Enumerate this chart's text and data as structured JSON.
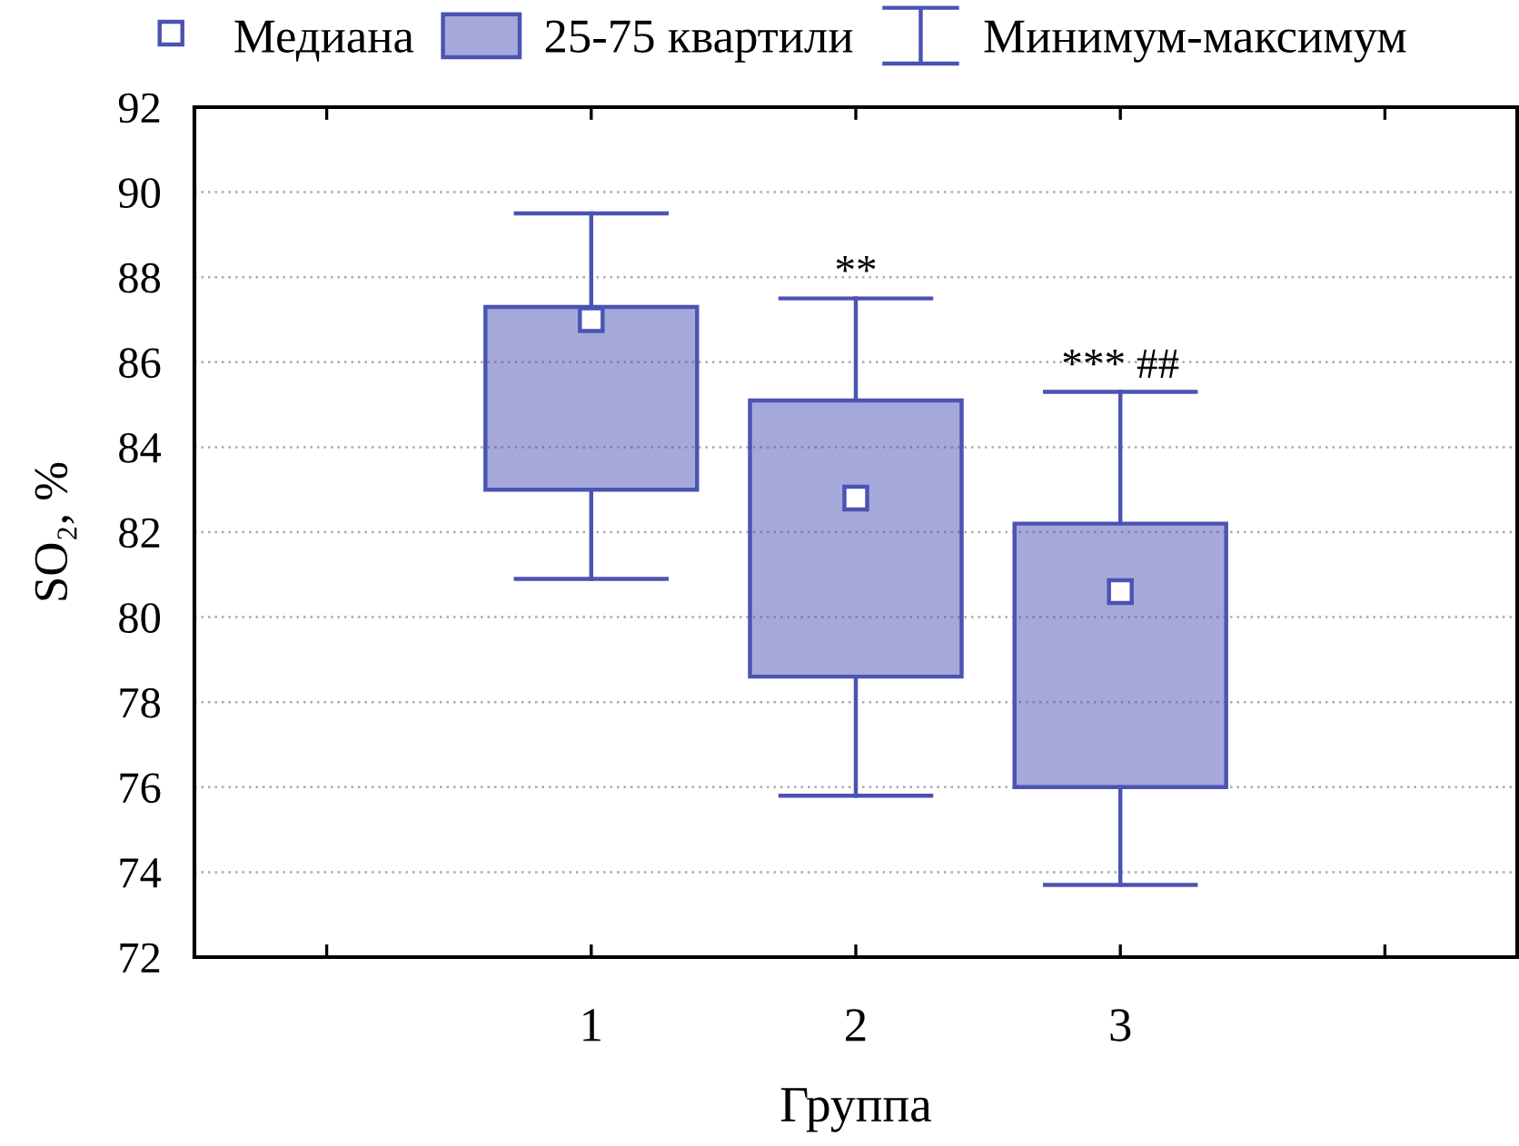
{
  "chart_data": {
    "type": "box",
    "categories": [
      null,
      "1",
      "2",
      "3",
      null
    ],
    "boxes": [
      null,
      {
        "low": 80.9,
        "q1": 83.0,
        "median": 87.0,
        "q3": 87.3,
        "high": 89.5
      },
      {
        "low": 75.8,
        "q1": 78.6,
        "median": 82.8,
        "q3": 85.1,
        "high": 87.5
      },
      {
        "low": 73.7,
        "q1": 76.0,
        "median": 80.6,
        "q3": 82.2,
        "high": 85.3
      },
      null
    ],
    "color": "#4b53b3",
    "marker": "square",
    "xlabel": "Группа",
    "ylabel": "SO₂, %",
    "ylim": [
      72,
      92
    ],
    "yticks": [
      72,
      74,
      76,
      78,
      80,
      82,
      84,
      86,
      88,
      90,
      92
    ],
    "grid": "y",
    "annotations": [
      "Медиана",
      "25-75 квартили",
      "Минимум-максимум",
      {
        "text": "**",
        "x": "2",
        "y": 87.5
      },
      {
        "text": "*** ##",
        "x": "3",
        "y": 85.3
      }
    ]
  }
}
